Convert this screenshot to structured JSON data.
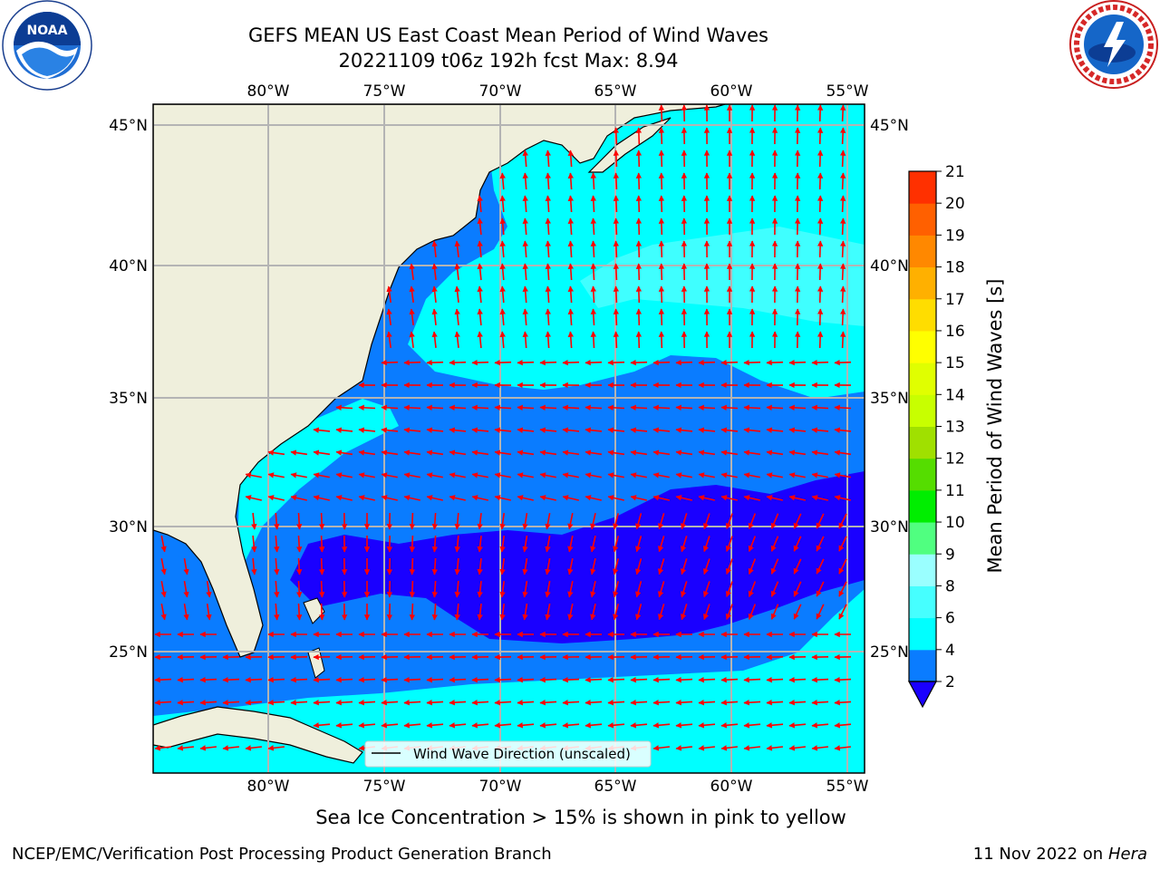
{
  "title": {
    "line1": "GEFS MEAN US East Coast Mean Period of Wind Waves",
    "line2": "20221109 t06z 192h fcst   Max: 8.94"
  },
  "logos": {
    "left": {
      "icon": "noaa-logo",
      "text": "NOAA"
    },
    "right": {
      "icon": "national-weather-service-logo"
    }
  },
  "map": {
    "region": "US East Coast / Western North Atlantic",
    "lon_range": [
      -85,
      -54.3
    ],
    "lat_range": [
      20.4,
      45.9
    ],
    "lon_ticks": [
      "80°W",
      "75°W",
      "70°W",
      "65°W",
      "60°W",
      "55°W"
    ],
    "lat_ticks": [
      "45°N",
      "40°N",
      "35°N",
      "30°N",
      "25°N"
    ],
    "grid": true,
    "arrow_color": "#ff0000",
    "land_color": "#efefdc",
    "legend": {
      "label": "Wind Wave Direction (unscaled)",
      "placement": "bottom-center"
    }
  },
  "colorbar": {
    "label": "Mean Period of Wind Waves [s]",
    "ticks": [
      "2",
      "4",
      "6",
      "8",
      "9",
      "10",
      "11",
      "12",
      "13",
      "14",
      "15",
      "16",
      "17",
      "18",
      "19",
      "20",
      "21"
    ],
    "colors": [
      "#0a7cff",
      "#00ffff",
      "#46ffff",
      "#9affff",
      "#50ff80",
      "#00ee00",
      "#55dd00",
      "#a0e000",
      "#c8ff00",
      "#e0ff00",
      "#ffff00",
      "#ffdd00",
      "#ffb000",
      "#ff8800",
      "#ff6000",
      "#ff3000"
    ],
    "extend_min_color": "#1a00ff"
  },
  "footer": {
    "note": "Sea Ice Concentration > 15% is shown in pink to yellow",
    "left": "NCEP/EMC/Verification Post Processing Product Generation Branch",
    "right_date": "11 Nov 2022 on",
    "right_machine": "Hera"
  }
}
